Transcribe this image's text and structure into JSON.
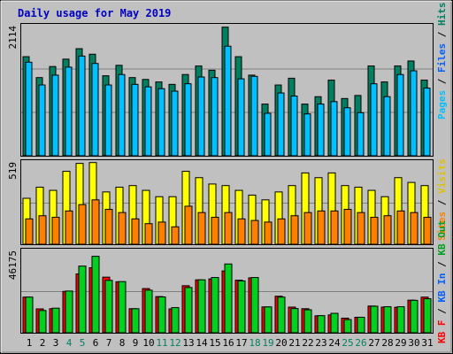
{
  "title": "Daily usage for May 2019",
  "colors": {
    "background": "#C0C0C0",
    "title": "#0000C0",
    "pages": "#008040",
    "files": "#00C0FF",
    "hits": "#008060",
    "sites": "#FF8000",
    "visits": "#FFFF00",
    "kb_in": "#00D020",
    "kb_out": "#FF0000",
    "weekend_day": "#008060",
    "weekday_day": "#000000"
  },
  "chart_data": [
    {
      "type": "bar",
      "panel": "hits-files-pages",
      "ymax_label": "2114",
      "ylim": [
        0,
        2114
      ],
      "grid": true,
      "legend": [
        "Pages",
        "Files",
        "Hits"
      ],
      "categories": [
        "1",
        "2",
        "3",
        "4",
        "5",
        "6",
        "7",
        "8",
        "9",
        "10",
        "11",
        "12",
        "13",
        "14",
        "15",
        "16",
        "17",
        "18",
        "19",
        "20",
        "21",
        "22",
        "23",
        "24",
        "25",
        "26",
        "27",
        "28",
        "29",
        "30",
        "31"
      ],
      "series": [
        {
          "name": "Hits",
          "values": [
            1610,
            1270,
            1450,
            1570,
            1740,
            1650,
            1300,
            1470,
            1270,
            1240,
            1200,
            1160,
            1320,
            1460,
            1390,
            2090,
            1610,
            1310,
            840,
            1150,
            1260,
            840,
            960,
            1230,
            930,
            980,
            1460,
            1200,
            1460,
            1540,
            1230
          ]
        },
        {
          "name": "Files",
          "values": [
            1520,
            1150,
            1310,
            1440,
            1620,
            1500,
            1150,
            1320,
            1160,
            1120,
            1090,
            1050,
            1170,
            1280,
            1270,
            1780,
            1250,
            1290,
            690,
            1020,
            970,
            680,
            840,
            880,
            780,
            700,
            1170,
            960,
            1320,
            1380,
            1100
          ]
        },
        {
          "name": "Pages",
          "values": [
            1420,
            1100,
            1170,
            1290,
            1350,
            1320,
            1060,
            1140,
            1080,
            1050,
            1010,
            970,
            1030,
            1130,
            1100,
            1260,
            1080,
            1050,
            640,
            930,
            930,
            660,
            750,
            760,
            690,
            650,
            990,
            850,
            1130,
            1190,
            960
          ]
        }
      ]
    },
    {
      "type": "bar",
      "panel": "visits-sites",
      "ymax_label": "519",
      "ylim": [
        0,
        519
      ],
      "grid": true,
      "legend": [
        "Sites",
        "Visits"
      ],
      "categories": [
        "1",
        "2",
        "3",
        "4",
        "5",
        "6",
        "7",
        "8",
        "9",
        "10",
        "11",
        "12",
        "13",
        "14",
        "15",
        "16",
        "17",
        "18",
        "19",
        "20",
        "21",
        "22",
        "23",
        "24",
        "25",
        "26",
        "27",
        "28",
        "29",
        "30",
        "31"
      ],
      "series": [
        {
          "name": "Visits",
          "values": [
            290,
            360,
            340,
            460,
            510,
            515,
            330,
            360,
            370,
            340,
            300,
            300,
            460,
            420,
            380,
            370,
            340,
            310,
            280,
            330,
            370,
            450,
            420,
            450,
            370,
            360,
            340,
            300,
            420,
            390,
            370
          ]
        },
        {
          "name": "Sites",
          "values": [
            160,
            180,
            170,
            210,
            250,
            280,
            220,
            200,
            160,
            130,
            140,
            110,
            240,
            200,
            170,
            200,
            160,
            150,
            140,
            160,
            180,
            200,
            210,
            210,
            220,
            200,
            170,
            180,
            210,
            200,
            170
          ]
        }
      ]
    },
    {
      "type": "bar",
      "panel": "kb-in-out",
      "ymax_label": "46175",
      "ylim": [
        0,
        46175
      ],
      "grid": true,
      "legend": [
        "KB F",
        "KB In",
        "KB Out"
      ],
      "categories": [
        "1",
        "2",
        "3",
        "4",
        "5",
        "6",
        "7",
        "8",
        "9",
        "10",
        "11",
        "12",
        "13",
        "14",
        "15",
        "16",
        "17",
        "18",
        "19",
        "20",
        "21",
        "22",
        "23",
        "24",
        "25",
        "26",
        "27",
        "28",
        "29",
        "30",
        "31"
      ],
      "series": [
        {
          "name": "KB Out",
          "values": [
            20000,
            13400,
            13500,
            23200,
            33000,
            36500,
            31200,
            28600,
            13500,
            24800,
            20300,
            13400,
            26400,
            29700,
            30200,
            34700,
            29500,
            30800,
            14500,
            20500,
            14400,
            13500,
            9500,
            10000,
            8200,
            8700,
            15000,
            14400,
            14300,
            18300,
            20000
          ]
        },
        {
          "name": "KB In",
          "values": [
            20000,
            12500,
            13800,
            23400,
            37400,
            42900,
            29400,
            28700,
            13500,
            23900,
            20100,
            14100,
            25400,
            29700,
            31000,
            38600,
            29100,
            31000,
            14500,
            20000,
            13600,
            12900,
            9600,
            10900,
            7400,
            8700,
            14900,
            14600,
            14600,
            18200,
            19100
          ]
        }
      ]
    }
  ],
  "legends": {
    "top": [
      "Pages",
      "Files",
      "Hits"
    ],
    "middle": [
      "Sites",
      "Visits"
    ],
    "bottom": [
      "KB F",
      "KB In",
      "KB Out"
    ]
  },
  "days": [
    {
      "label": "1",
      "weekend": false
    },
    {
      "label": "2",
      "weekend": false
    },
    {
      "label": "3",
      "weekend": false
    },
    {
      "label": "4",
      "weekend": true
    },
    {
      "label": "5",
      "weekend": true
    },
    {
      "label": "6",
      "weekend": false
    },
    {
      "label": "7",
      "weekend": false
    },
    {
      "label": "8",
      "weekend": false
    },
    {
      "label": "9",
      "weekend": false
    },
    {
      "label": "10",
      "weekend": false
    },
    {
      "label": "11",
      "weekend": true
    },
    {
      "label": "12",
      "weekend": true
    },
    {
      "label": "13",
      "weekend": false
    },
    {
      "label": "14",
      "weekend": false
    },
    {
      "label": "15",
      "weekend": false
    },
    {
      "label": "16",
      "weekend": false
    },
    {
      "label": "17",
      "weekend": false
    },
    {
      "label": "18",
      "weekend": true
    },
    {
      "label": "19",
      "weekend": true
    },
    {
      "label": "20",
      "weekend": false
    },
    {
      "label": "21",
      "weekend": false
    },
    {
      "label": "22",
      "weekend": false
    },
    {
      "label": "23",
      "weekend": false
    },
    {
      "label": "24",
      "weekend": false
    },
    {
      "label": "25",
      "weekend": true
    },
    {
      "label": "26",
      "weekend": true
    },
    {
      "label": "27",
      "weekend": false
    },
    {
      "label": "28",
      "weekend": false
    },
    {
      "label": "29",
      "weekend": false
    },
    {
      "label": "30",
      "weekend": false
    },
    {
      "label": "31",
      "weekend": false
    }
  ]
}
